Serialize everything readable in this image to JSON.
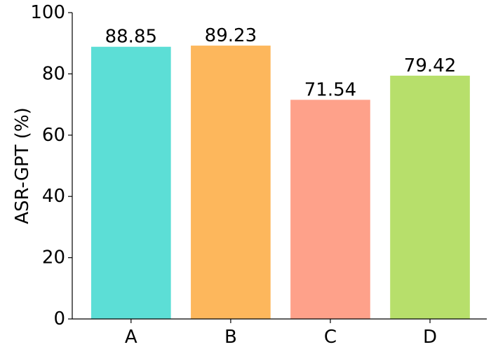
{
  "chart_data": {
    "type": "bar",
    "title": "",
    "xlabel": "",
    "ylabel": "ASR-GPT (%)",
    "categories": [
      "A",
      "B",
      "C",
      "D"
    ],
    "values": [
      88.85,
      89.23,
      71.54,
      79.42
    ],
    "value_labels": [
      "88.85",
      "89.23",
      "71.54",
      "79.42"
    ],
    "colors": [
      "#5cded6",
      "#fdb75c",
      "#fea18a",
      "#b7df6b"
    ],
    "ylim": [
      0,
      100
    ],
    "yticks": [
      0,
      20,
      40,
      60,
      80,
      100
    ],
    "grid": false,
    "legend": "none"
  }
}
